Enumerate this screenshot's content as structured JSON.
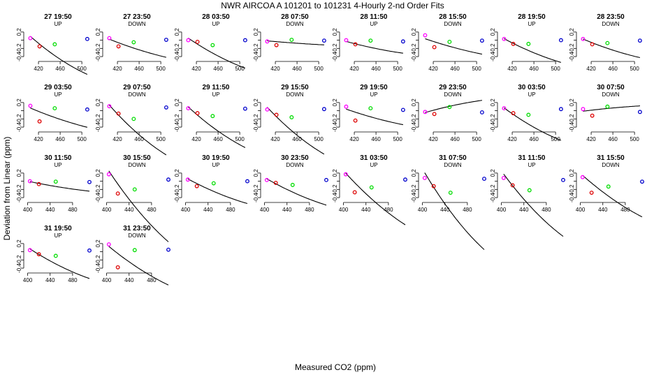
{
  "chart_data": {
    "type": "scatter",
    "title": "NWR   AIRCOA A   101201 to 101231   4-Hourly 2-nd Order Fits",
    "xlabel": "Measured CO2 (ppm)",
    "ylabel": "Deviation from Linear (ppm)",
    "yticks": [
      "-0.4",
      "-0.2",
      "0.0",
      "0.2"
    ],
    "ylim": [
      -0.45,
      0.3
    ],
    "xticks_a": [
      "420",
      "460",
      "500"
    ],
    "xlim_a": [
      398,
      514
    ],
    "xticks_b": [
      "400",
      "440",
      "480"
    ],
    "xlim_b": [
      398,
      510
    ],
    "point_colors": [
      "#ff00ff",
      "#dd0000",
      "#00dd00",
      "#0000cc"
    ],
    "panels": [
      {
        "label": "27 19:50",
        "mode": "UP",
        "xt": "a",
        "x": [
          405,
          422,
          450,
          510
        ],
        "y": [
          0.05,
          -0.15,
          -0.1,
          0.03
        ],
        "fit": [
          0.154,
          -0.0119,
          2.65e-05
        ]
      },
      {
        "label": "27 23:50",
        "mode": "DOWN",
        "xt": "a",
        "x": [
          405,
          422,
          450,
          510
        ],
        "y": [
          0.05,
          -0.15,
          -0.05,
          0.01
        ],
        "fit": [
          0.052,
          -0.0054,
          1.03e-05
        ]
      },
      {
        "label": "28 03:50",
        "mode": "UP",
        "xt": "a",
        "x": [
          405,
          422,
          450,
          510
        ],
        "y": [
          0.0,
          -0.04,
          -0.12,
          0.0
        ],
        "fit": [
          0.097,
          -0.0092,
          1.93e-05
        ]
      },
      {
        "label": "28 07:50",
        "mode": "DOWN",
        "xt": "a",
        "x": [
          405,
          422,
          450,
          510
        ],
        "y": [
          -0.03,
          -0.12,
          0.01,
          -0.01
        ],
        "fit": [
          -0.01,
          -0.0012,
          2.3e-06
        ]
      },
      {
        "label": "28 11:50",
        "mode": "UP",
        "xt": "a",
        "x": [
          405,
          422,
          450,
          510
        ],
        "y": [
          0.0,
          -0.1,
          -0.01,
          -0.03
        ],
        "fit": [
          -0.011,
          -0.0037,
          8.3e-06
        ]
      },
      {
        "label": "28 15:50",
        "mode": "DOWN",
        "xt": "a",
        "x": [
          405,
          422,
          450,
          510
        ],
        "y": [
          0.12,
          -0.17,
          -0.04,
          -0.01
        ],
        "fit": [
          0.059,
          -0.0046,
          8.8e-06
        ]
      },
      {
        "label": "28 19:50",
        "mode": "UP",
        "xt": "a",
        "x": [
          405,
          422,
          450,
          510
        ],
        "y": [
          0.03,
          -0.09,
          -0.09,
          0.0
        ],
        "fit": [
          0.075,
          -0.0073,
          1.54e-05
        ]
      },
      {
        "label": "28 23:50",
        "mode": "DOWN",
        "xt": "a",
        "x": [
          405,
          422,
          450,
          510
        ],
        "y": [
          0.03,
          -0.1,
          -0.07,
          -0.01
        ],
        "fit": [
          0.057,
          -0.0057,
          1.2e-05
        ]
      },
      {
        "label": "29 03:50",
        "mode": "UP",
        "xt": "a",
        "x": [
          405,
          422,
          450,
          510
        ],
        "y": [
          0.12,
          -0.26,
          0.06,
          0.03
        ],
        "fit": [
          0.094,
          -0.0057,
          1.06e-05
        ]
      },
      {
        "label": "29 07:50",
        "mode": "DOWN",
        "xt": "a",
        "x": [
          405,
          422,
          450,
          510
        ],
        "y": [
          0.11,
          -0.07,
          -0.2,
          0.08
        ],
        "fit": [
          0.214,
          -0.0153,
          3.23e-05
        ]
      },
      {
        "label": "29 11:50",
        "mode": "UP",
        "xt": "a",
        "x": [
          405,
          422,
          450,
          510
        ],
        "y": [
          0.06,
          -0.06,
          -0.13,
          0.05
        ],
        "fit": [
          0.153,
          -0.0124,
          2.57e-05
        ]
      },
      {
        "label": "29 15:50",
        "mode": "DOWN",
        "xt": "a",
        "x": [
          405,
          422,
          450,
          510
        ],
        "y": [
          0.03,
          -0.1,
          -0.16,
          0.04
        ],
        "fit": [
          0.157,
          -0.0144,
          3.03e-05
        ]
      },
      {
        "label": "29 19:50",
        "mode": "UP",
        "xt": "a",
        "x": [
          405,
          422,
          450,
          510
        ],
        "y": [
          0.1,
          -0.24,
          0.06,
          0.02
        ],
        "fit": [
          0.063,
          -0.0047,
          9.3e-06
        ]
      },
      {
        "label": "29 23:50",
        "mode": "DOWN",
        "xt": "a",
        "x": [
          405,
          422,
          450,
          510
        ],
        "y": [
          -0.03,
          -0.08,
          0.09,
          -0.04
        ],
        "fit": [
          -0.064,
          0.0039,
          -9.2e-06
        ]
      },
      {
        "label": "30 03:50",
        "mode": "UP",
        "xt": "a",
        "x": [
          405,
          422,
          450,
          510
        ],
        "y": [
          0.06,
          -0.06,
          -0.1,
          0.04
        ],
        "fit": [
          0.119,
          -0.01,
          2.13e-05
        ]
      },
      {
        "label": "30 07:50",
        "mode": "DOWN",
        "xt": "a",
        "x": [
          405,
          422,
          450,
          510
        ],
        "y": [
          0.04,
          -0.12,
          0.1,
          -0.03
        ],
        "fit": [
          -0.02,
          0.0017,
          -4e-06
        ]
      },
      {
        "label": "30 11:50",
        "mode": "UP",
        "xt": "b",
        "x": [
          404,
          420,
          450,
          510
        ],
        "y": [
          0.0,
          -0.07,
          -0.01,
          -0.02
        ],
        "fit": [
          0.002,
          -0.0029,
          6.2e-06
        ]
      },
      {
        "label": "30 15:50",
        "mode": "DOWN",
        "xt": "b",
        "x": [
          404,
          420,
          450,
          510
        ],
        "y": [
          0.17,
          -0.3,
          -0.2,
          0.04
        ],
        "fit": [
          0.335,
          -0.021,
          4.1e-05
        ]
      },
      {
        "label": "30 19:50",
        "mode": "UP",
        "xt": "b",
        "x": [
          404,
          420,
          450,
          510
        ],
        "y": [
          0.04,
          -0.12,
          -0.05,
          0.0
        ],
        "fit": [
          0.087,
          -0.0075,
          1.6e-05
        ]
      },
      {
        "label": "30 23:50",
        "mode": "DOWN",
        "xt": "b",
        "x": [
          404,
          420,
          450,
          510
        ],
        "y": [
          0.03,
          -0.04,
          -0.09,
          0.03
        ],
        "fit": [
          0.092,
          -0.008,
          1.7e-05
        ]
      },
      {
        "label": "31 03:50",
        "mode": "UP",
        "xt": "b",
        "x": [
          404,
          420,
          450,
          510
        ],
        "y": [
          0.17,
          -0.27,
          -0.15,
          0.04
        ],
        "fit": [
          0.257,
          -0.0152,
          2.9e-05
        ]
      },
      {
        "label": "31 07:50",
        "mode": "DOWN",
        "xt": "b",
        "x": [
          404,
          420,
          450,
          510
        ],
        "y": [
          0.08,
          -0.12,
          -0.28,
          0.06
        ],
        "fit": [
          0.301,
          -0.0233,
          4.9e-05
        ]
      },
      {
        "label": "31 11:50",
        "mode": "UP",
        "xt": "b",
        "x": [
          404,
          420,
          450,
          510
        ],
        "y": [
          0.08,
          -0.1,
          -0.22,
          0.03
        ],
        "fit": [
          0.25,
          -0.0188,
          3.9e-05
        ]
      },
      {
        "label": "31 15:50",
        "mode": "DOWN",
        "xt": "b",
        "x": [
          404,
          420,
          450,
          510
        ],
        "y": [
          0.1,
          -0.28,
          -0.13,
          -0.01
        ],
        "fit": [
          0.192,
          -0.0123,
          2.4e-05
        ]
      },
      {
        "label": "31 19:50",
        "mode": "UP",
        "xt": "b",
        "x": [
          404,
          420,
          450,
          510
        ],
        "y": [
          0.04,
          -0.06,
          -0.1,
          0.03
        ],
        "fit": [
          0.106,
          -0.009,
          1.9e-05
        ]
      },
      {
        "label": "31 23:50",
        "mode": "DOWN",
        "xt": "b",
        "x": [
          404,
          420,
          450,
          510
        ],
        "y": [
          0.18,
          -0.38,
          0.04,
          0.05
        ],
        "fit": [
          0.175,
          -0.0114,
          2.2e-05
        ]
      }
    ]
  }
}
